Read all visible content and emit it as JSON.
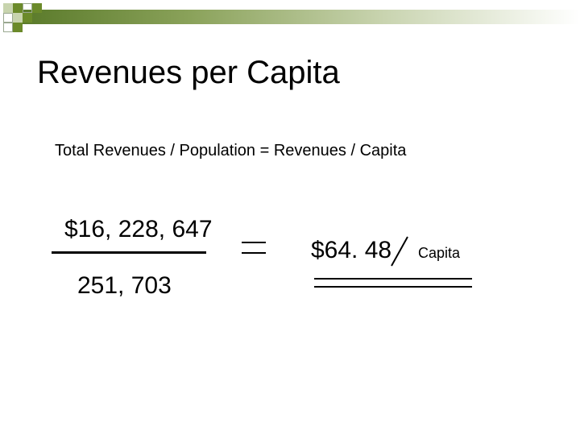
{
  "slide": {
    "title": "Revenues per Capita",
    "formula": "Total Revenues / Population =  Revenues / Capita",
    "calculation": {
      "numerator": "$16, 228, 647",
      "denominator": "251, 703",
      "result": "$64. 48",
      "result_unit": "Capita"
    }
  },
  "theme": {
    "accent": "#6b8a2a",
    "accent_light": "#c8d4ae"
  }
}
